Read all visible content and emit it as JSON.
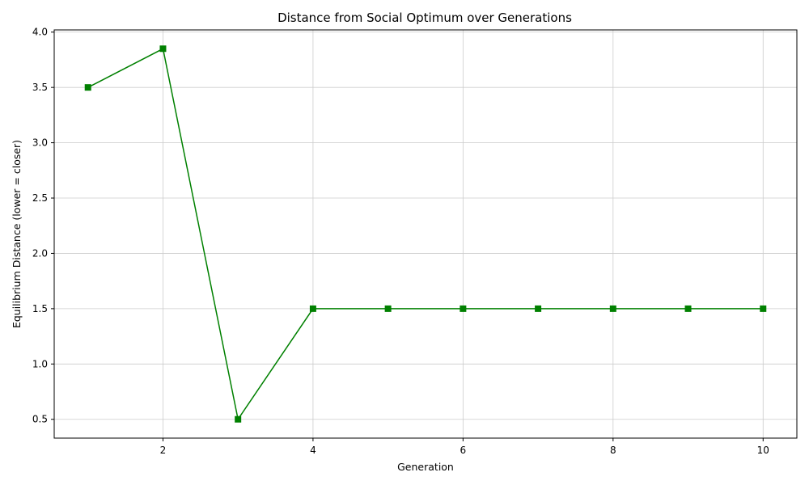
{
  "chart_data": {
    "type": "line",
    "title": "Distance from Social Optimum over Generations",
    "xlabel": "Generation",
    "ylabel": "Equilibrium Distance (lower = closer)",
    "xlim": [
      0.55,
      10.45
    ],
    "ylim": [
      0.33,
      4.02
    ],
    "xticks": [
      2,
      4,
      6,
      8,
      10
    ],
    "yticks": [
      0.5,
      1.0,
      1.5,
      2.0,
      2.5,
      3.0,
      3.5,
      4.0
    ],
    "xtick_labels": [
      "2",
      "4",
      "6",
      "8",
      "10"
    ],
    "ytick_labels": [
      "0.5",
      "1.0",
      "1.5",
      "2.0",
      "2.5",
      "3.0",
      "3.5",
      "4.0"
    ],
    "grid": true,
    "series": [
      {
        "color": "#008000",
        "marker": "square",
        "x": [
          1,
          2,
          3,
          4,
          5,
          6,
          7,
          8,
          9,
          10
        ],
        "y": [
          3.5,
          3.85,
          0.5,
          1.5,
          1.5,
          1.5,
          1.5,
          1.5,
          1.5,
          1.5
        ]
      }
    ]
  }
}
